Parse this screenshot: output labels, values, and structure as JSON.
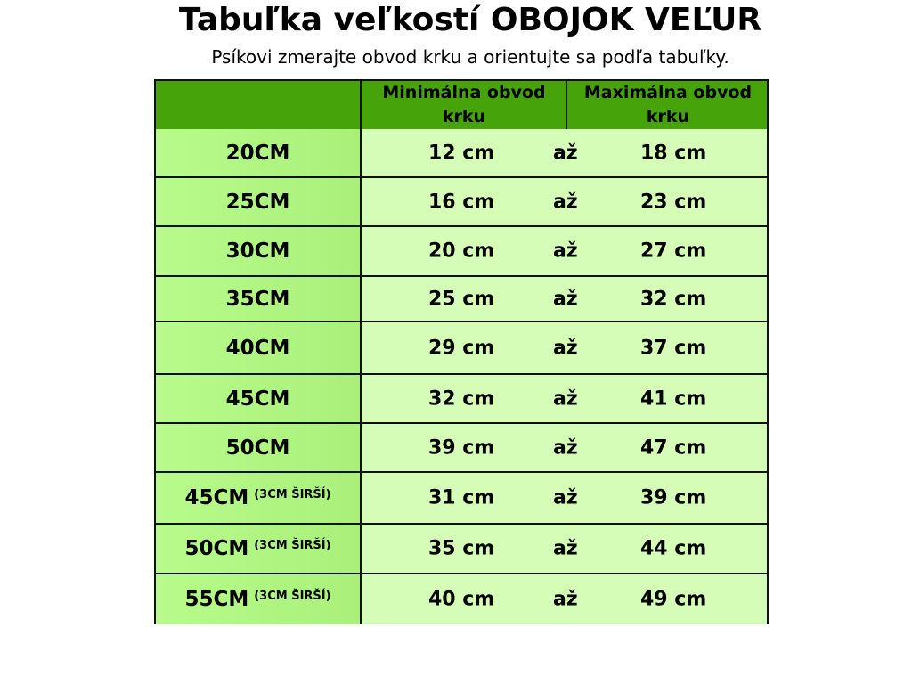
{
  "title": "Tabuľka veľkostí OBOJOK VEĽUR",
  "subtitle": "Psíkovi zmerajte obvod krku a orientujte sa podľa tabuľky.",
  "colors": {
    "header": "#46a30a",
    "size_cell": "#b8fb8c",
    "value_cell": "#d6fdb8"
  },
  "table": {
    "headers": {
      "min": "Minimálna obvod krku",
      "max": "Maximálna obvod krku"
    },
    "rows": [
      {
        "size": "20CM",
        "note": "",
        "min": "12 cm",
        "to": "až",
        "max": "18 cm"
      },
      {
        "size": "25CM",
        "note": "",
        "min": "16 cm",
        "to": "až",
        "max": "23 cm"
      },
      {
        "size": "30CM",
        "note": "",
        "min": "20 cm",
        "to": "až",
        "max": "27 cm"
      },
      {
        "size": "35CM",
        "note": "",
        "min": "25 cm",
        "to": "až",
        "max": "32 cm"
      },
      {
        "size": "40CM",
        "note": "",
        "min": "29 cm",
        "to": "až",
        "max": "37 cm"
      },
      {
        "size": "45CM",
        "note": "",
        "min": "32 cm",
        "to": "až",
        "max": "41 cm"
      },
      {
        "size": "50CM",
        "note": "",
        "min": "39 cm",
        "to": "až",
        "max": "47 cm"
      },
      {
        "size": "45CM",
        "note": "(3CM ŠIRŠÍ)",
        "min": "31 cm",
        "to": "až",
        "max": "39 cm"
      },
      {
        "size": "50CM",
        "note": "(3CM ŠIRŠÍ)",
        "min": "35 cm",
        "to": "až",
        "max": "44 cm"
      },
      {
        "size": "55CM",
        "note": "(3CM ŠIRŠÍ)",
        "min": "40 cm",
        "to": "až",
        "max": "49 cm"
      }
    ]
  }
}
